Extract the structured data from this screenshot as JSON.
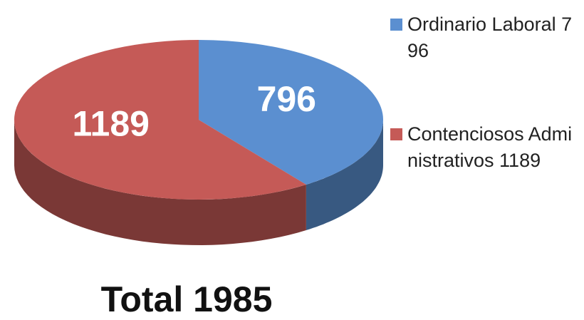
{
  "chart_data": {
    "type": "pie3d",
    "title": "Total 1985",
    "categories": [
      "Ordinario Laboral 796",
      "Contenciosos Administrativos 1189"
    ],
    "values": [
      796,
      1189
    ],
    "colors": [
      "#5b8fd0",
      "#c55a57"
    ],
    "legend": "right"
  }
}
